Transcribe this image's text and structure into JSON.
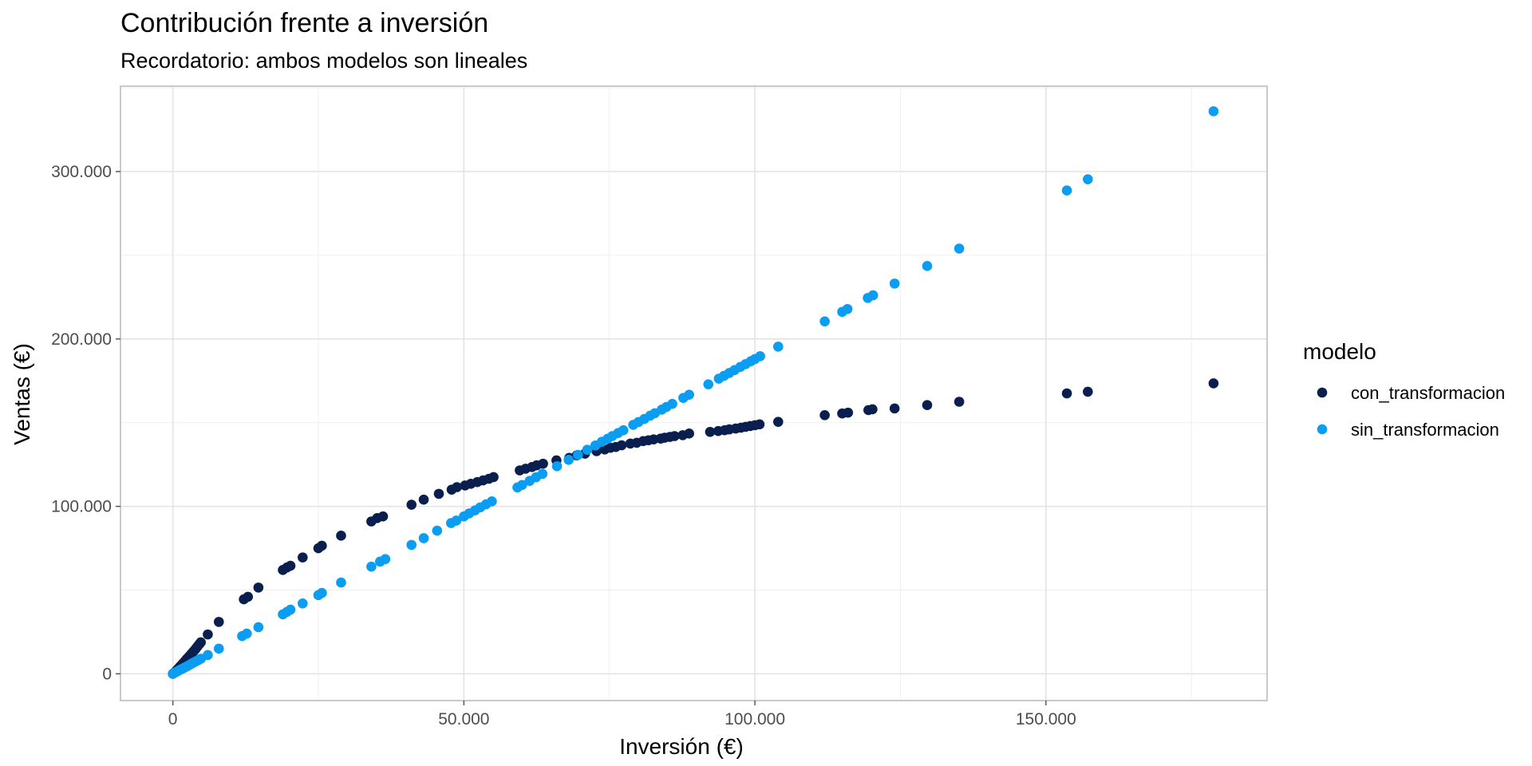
{
  "chart_data": {
    "type": "scatter",
    "title": "Contribución frente a inversión",
    "subtitle": "Recordatorio: ambos modelos son lineales",
    "xlabel": "Inversión (€)",
    "ylabel": "Ventas (€)",
    "xlim": [
      -9000,
      188000
    ],
    "ylim": [
      -16000,
      351000
    ],
    "x_ticks": [
      0,
      50000,
      100000,
      150000
    ],
    "x_tick_labels": [
      "0",
      "50.000",
      "100.000",
      "150.000"
    ],
    "y_ticks": [
      0,
      100000,
      200000,
      300000
    ],
    "y_tick_labels": [
      "0",
      "100.000",
      "200.000",
      "300.000"
    ],
    "grid": true,
    "legend": {
      "title": "modelo",
      "position": "right"
    },
    "series": [
      {
        "name": "con_transformacion",
        "color": "#0b1f4f",
        "points": [
          [
            0,
            0
          ],
          [
            300,
            800
          ],
          [
            600,
            1900
          ],
          [
            900,
            3000
          ],
          [
            1200,
            4200
          ],
          [
            1500,
            5300
          ],
          [
            1800,
            6500
          ],
          [
            2100,
            7600
          ],
          [
            2400,
            8900
          ],
          [
            2700,
            10000
          ],
          [
            3000,
            11200
          ],
          [
            3300,
            12400
          ],
          [
            3600,
            13600
          ],
          [
            3900,
            14800
          ],
          [
            4200,
            16200
          ],
          [
            4500,
            17500
          ],
          [
            4800,
            18800
          ],
          [
            6000,
            23500
          ],
          [
            7900,
            31000
          ],
          [
            12200,
            44500
          ],
          [
            12900,
            46000
          ],
          [
            14700,
            51500
          ],
          [
            18900,
            62000
          ],
          [
            19600,
            63500
          ],
          [
            20200,
            64500
          ],
          [
            22300,
            69500
          ],
          [
            25000,
            75000
          ],
          [
            25600,
            76500
          ],
          [
            28900,
            82500
          ],
          [
            34100,
            91000
          ],
          [
            35100,
            93000
          ],
          [
            36100,
            94000
          ],
          [
            41000,
            101000
          ],
          [
            43100,
            104000
          ],
          [
            45700,
            107500
          ],
          [
            47900,
            110000
          ],
          [
            48800,
            111500
          ],
          [
            50200,
            112500
          ],
          [
            51200,
            113500
          ],
          [
            52300,
            114500
          ],
          [
            53300,
            115500
          ],
          [
            54300,
            116500
          ],
          [
            55100,
            117500
          ],
          [
            59600,
            121500
          ],
          [
            60600,
            122500
          ],
          [
            61700,
            123500
          ],
          [
            62500,
            124500
          ],
          [
            63600,
            125500
          ],
          [
            65900,
            127500
          ],
          [
            68100,
            129000
          ],
          [
            69400,
            130500
          ],
          [
            70800,
            131500
          ],
          [
            72800,
            133000
          ],
          [
            74200,
            134000
          ],
          [
            75200,
            135000
          ],
          [
            76100,
            135500
          ],
          [
            77100,
            136500
          ],
          [
            78600,
            137500
          ],
          [
            79700,
            138000
          ],
          [
            80800,
            139000
          ],
          [
            81700,
            139500
          ],
          [
            82600,
            140000
          ],
          [
            83800,
            140500
          ],
          [
            84500,
            141000
          ],
          [
            85400,
            141500
          ],
          [
            86200,
            142000
          ],
          [
            87600,
            142500
          ],
          [
            88700,
            143500
          ],
          [
            92300,
            144500
          ],
          [
            93700,
            145000
          ],
          [
            94800,
            145500
          ],
          [
            95600,
            146000
          ],
          [
            96700,
            146500
          ],
          [
            97600,
            147000
          ],
          [
            98400,
            147500
          ],
          [
            99200,
            148000
          ],
          [
            100000,
            148500
          ],
          [
            100800,
            149000
          ],
          [
            104000,
            150500
          ],
          [
            112000,
            154500
          ],
          [
            115000,
            155500
          ],
          [
            116000,
            156000
          ],
          [
            119500,
            157500
          ],
          [
            120200,
            158000
          ],
          [
            124000,
            158500
          ],
          [
            129600,
            160500
          ],
          [
            135100,
            162500
          ],
          [
            153600,
            167500
          ],
          [
            157200,
            168500
          ],
          [
            178800,
            173500
          ]
        ]
      },
      {
        "name": "sin_transformacion",
        "color": "#0a9df2",
        "points": [
          [
            0,
            0
          ],
          [
            400,
            800
          ],
          [
            800,
            1500
          ],
          [
            1200,
            2300
          ],
          [
            1600,
            3000
          ],
          [
            2000,
            3700
          ],
          [
            2400,
            4400
          ],
          [
            2800,
            5200
          ],
          [
            3200,
            6000
          ],
          [
            3600,
            6800
          ],
          [
            4000,
            7500
          ],
          [
            4400,
            8200
          ],
          [
            4800,
            9000
          ],
          [
            6000,
            11200
          ],
          [
            7900,
            15000
          ],
          [
            11900,
            22500
          ],
          [
            12700,
            24000
          ],
          [
            14700,
            27800
          ],
          [
            18900,
            35500
          ],
          [
            19600,
            37000
          ],
          [
            20200,
            38300
          ],
          [
            22300,
            42000
          ],
          [
            25000,
            47000
          ],
          [
            25600,
            48300
          ],
          [
            28900,
            54500
          ],
          [
            34100,
            64000
          ],
          [
            35600,
            67000
          ],
          [
            36500,
            68500
          ],
          [
            41000,
            77000
          ],
          [
            43100,
            81000
          ],
          [
            45400,
            85500
          ],
          [
            47800,
            90000
          ],
          [
            48700,
            91500
          ],
          [
            50000,
            94000
          ],
          [
            50900,
            95800
          ],
          [
            51900,
            97600
          ],
          [
            52800,
            99400
          ],
          [
            53800,
            101200
          ],
          [
            54800,
            103000
          ],
          [
            59200,
            111300
          ],
          [
            60000,
            112800
          ],
          [
            61300,
            115200
          ],
          [
            62400,
            117400
          ],
          [
            63500,
            119400
          ],
          [
            66000,
            124000
          ],
          [
            68000,
            127800
          ],
          [
            69600,
            130800
          ],
          [
            71200,
            133800
          ],
          [
            72600,
            136400
          ],
          [
            73700,
            138600
          ],
          [
            74700,
            140400
          ],
          [
            75500,
            142000
          ],
          [
            76500,
            143800
          ],
          [
            77400,
            145500
          ],
          [
            79100,
            148700
          ],
          [
            80000,
            150400
          ],
          [
            81000,
            152200
          ],
          [
            82000,
            154200
          ],
          [
            82800,
            155600
          ],
          [
            84000,
            157800
          ],
          [
            84800,
            159400
          ],
          [
            85800,
            161200
          ],
          [
            87700,
            164800
          ],
          [
            88700,
            166700
          ],
          [
            92000,
            172900
          ],
          [
            93800,
            176300
          ],
          [
            94700,
            178000
          ],
          [
            95600,
            179700
          ],
          [
            96500,
            181400
          ],
          [
            97500,
            183300
          ],
          [
            98400,
            185000
          ],
          [
            99300,
            186700
          ],
          [
            100000,
            188000
          ],
          [
            100900,
            189700
          ],
          [
            104000,
            195400
          ],
          [
            112000,
            210500
          ],
          [
            115000,
            216200
          ],
          [
            115900,
            217900
          ],
          [
            119400,
            224500
          ],
          [
            120300,
            226100
          ],
          [
            124000,
            233100
          ],
          [
            129600,
            243600
          ],
          [
            135100,
            254000
          ],
          [
            153600,
            288700
          ],
          [
            157200,
            295400
          ],
          [
            178800,
            336000
          ]
        ]
      }
    ]
  }
}
